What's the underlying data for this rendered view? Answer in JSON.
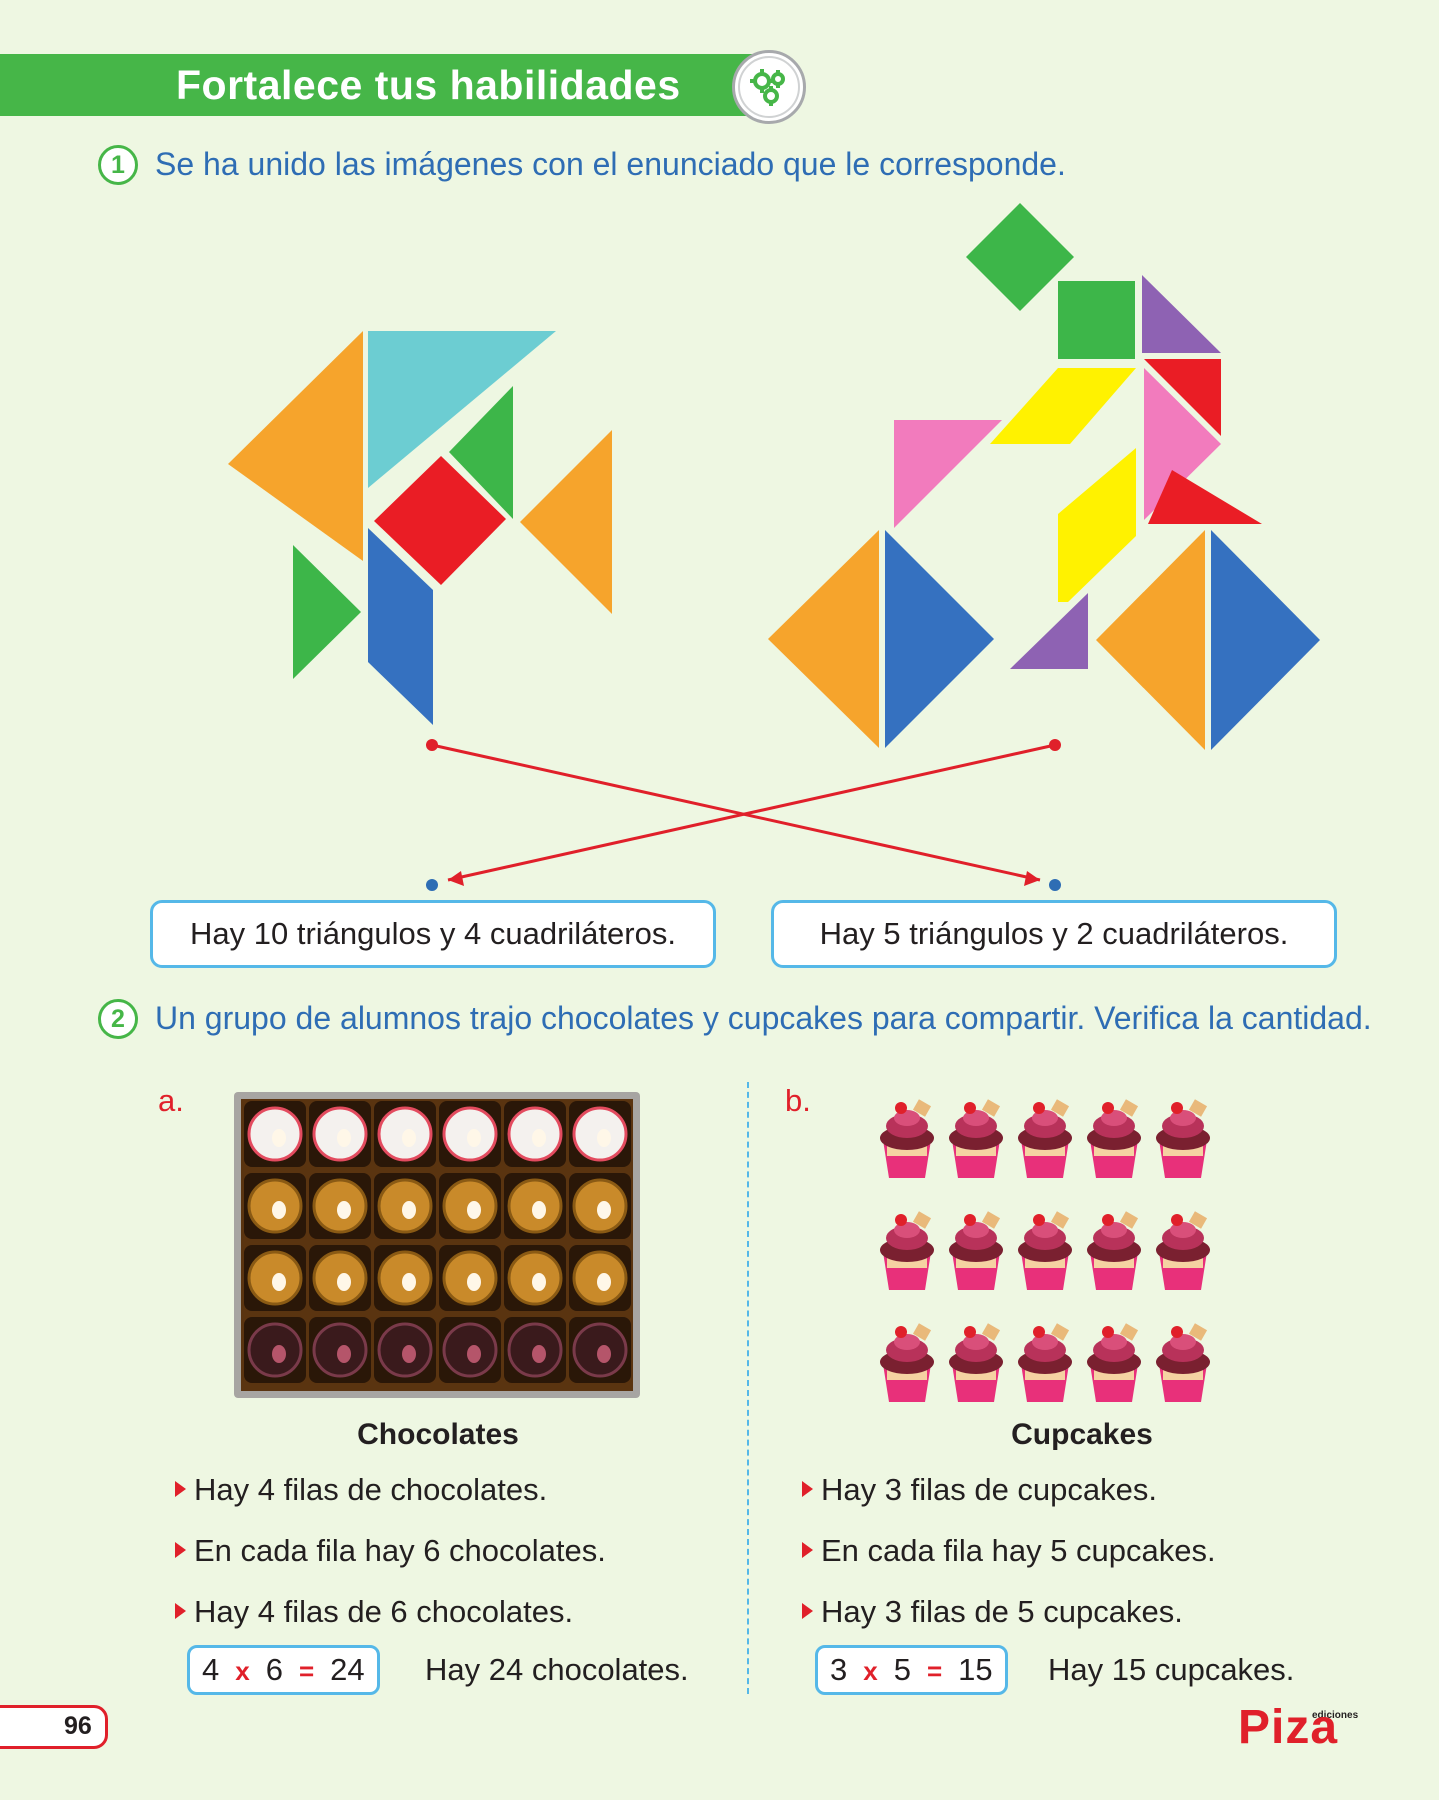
{
  "header": {
    "title": "Fortalece tus habilidades",
    "icon": "gears-icon"
  },
  "exercise1": {
    "number": "1",
    "instruction": "Se ha unido las imágenes  con el enunciado que le corresponde.",
    "statements": [
      "Hay 10 triángulos y 4 cuadriláteros.",
      "Hay 5 triángulos y 2 cuadriláteros."
    ],
    "colors": {
      "orange": "#f6a42c",
      "cyan": "#6ccdd2",
      "green": "#3db649",
      "red": "#ea1d25",
      "blue": "#3571c0",
      "pink": "#f27bbd",
      "yellow": "#fff200",
      "purple": "#8e62b3",
      "line": "#e0202a",
      "dot_blue": "#2e6db4"
    }
  },
  "exercise2": {
    "number": "2",
    "instruction": "Un grupo de alumnos trajo chocolates y cupcakes para compartir. Verifica la cantidad.",
    "a": {
      "letter": "a.",
      "title": "Chocolates",
      "bullets": [
        "Hay 4 filas de chocolates.",
        "En cada fila hay 6 chocolates.",
        "Hay 4 filas de 6 chocolates."
      ],
      "eq": {
        "left": "4",
        "op": "x",
        "right": "6",
        "eq": "=",
        "result": "24"
      },
      "result_text": "Hay 24 chocolates."
    },
    "b": {
      "letter": "b.",
      "title": "Cupcakes",
      "bullets": [
        "Hay 3 filas de cupcakes.",
        "En cada fila hay 5 cupcakes.",
        "Hay 3 filas de 5 cupcakes."
      ],
      "eq": {
        "left": "3",
        "op": "x",
        "right": "5",
        "eq": "=",
        "result": "15"
      },
      "result_text": "Hay 15 cupcakes."
    }
  },
  "footer": {
    "page_number": "96",
    "publisher_small": "ediciones",
    "publisher": "Piza"
  }
}
